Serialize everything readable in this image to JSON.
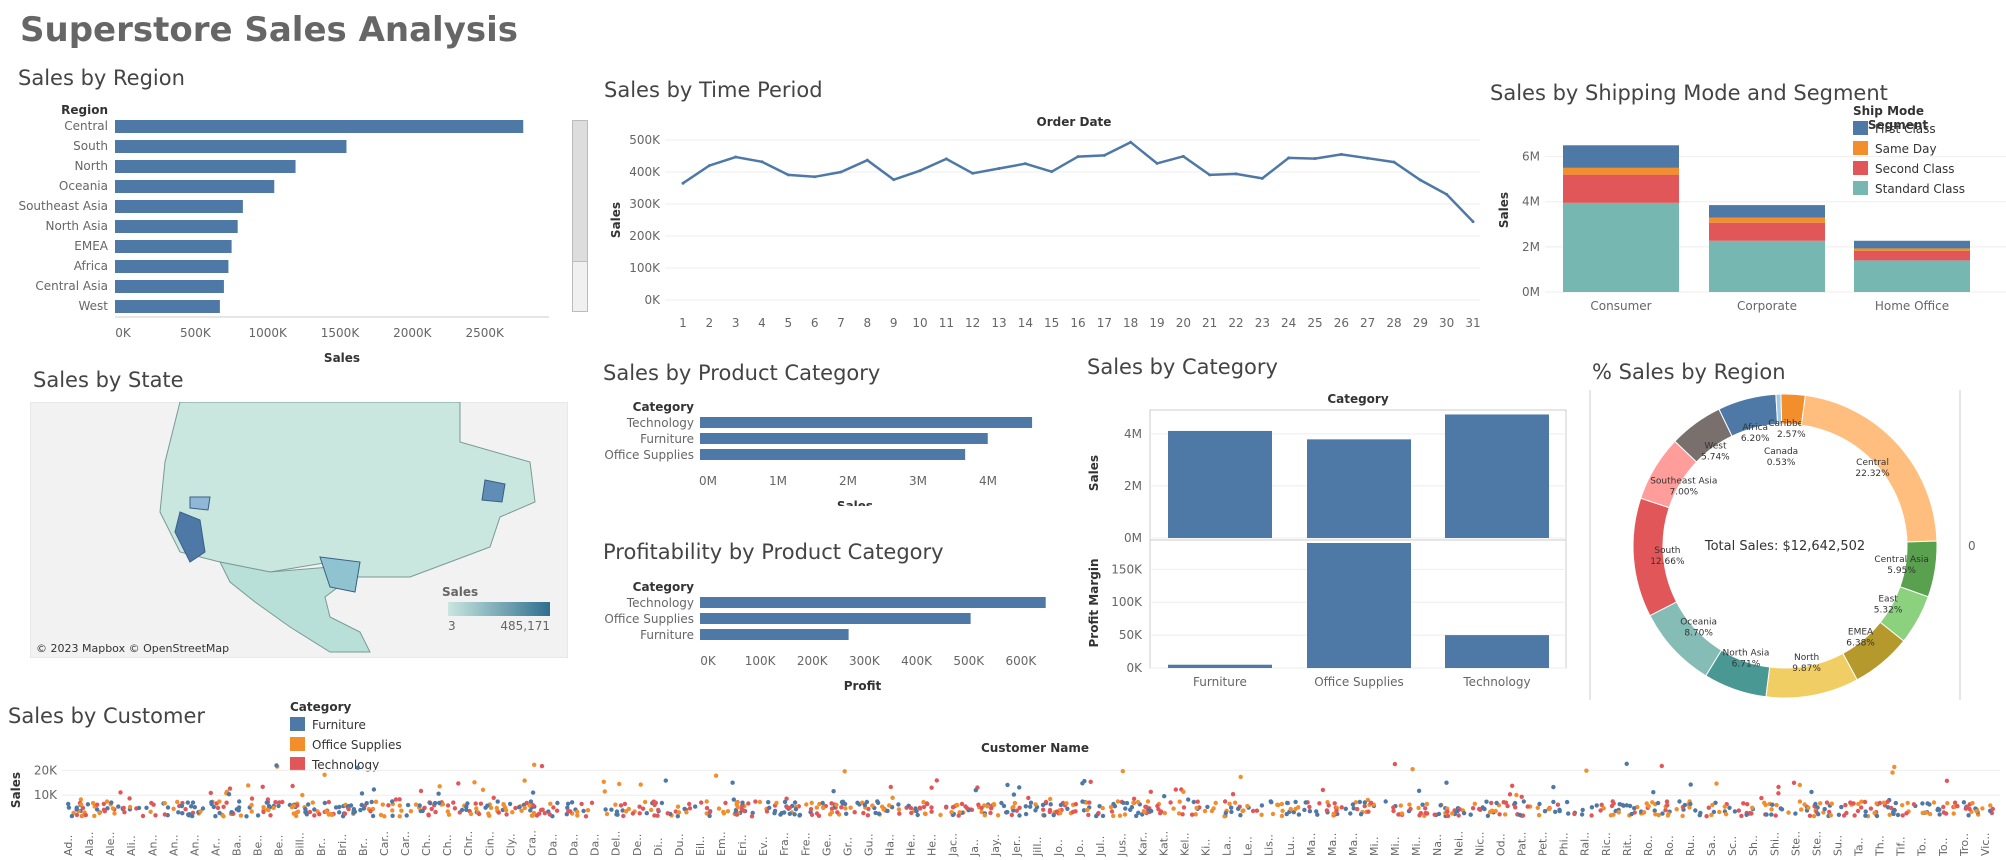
{
  "page_title": "Superstore Sales Analysis",
  "colors": {
    "bar": "#4e79a7",
    "first_class": "#4e79a7",
    "same_day": "#f28e2b",
    "second_class": "#e15759",
    "standard_class": "#76b7b2",
    "furniture": "#4e79a7",
    "office_supplies": "#f28e2b",
    "technology": "#e15759"
  },
  "chart_data": [
    {
      "id": "region",
      "type": "bar",
      "title": "Sales by Region",
      "dimension_label": "Region",
      "xlabel": "Sales",
      "categories": [
        "Central",
        "South",
        "North",
        "Oceania",
        "Southeast Asia",
        "North Asia",
        "EMEA",
        "Africa",
        "Central Asia",
        "West"
      ],
      "values": [
        2822000,
        1600000,
        1248000,
        1101000,
        884000,
        848000,
        806000,
        784000,
        753000,
        725000
      ],
      "xticks": [
        "0K",
        "500K",
        "1000K",
        "1500K",
        "2000K",
        "2500K"
      ],
      "xlim": [
        0,
        3000000
      ]
    },
    {
      "id": "time",
      "type": "line",
      "title": "Sales by Time Period",
      "xlabel": "Order Date",
      "ylabel": "Sales",
      "x": [
        1,
        2,
        3,
        4,
        5,
        6,
        7,
        8,
        9,
        10,
        11,
        12,
        13,
        14,
        15,
        16,
        17,
        18,
        19,
        20,
        21,
        22,
        23,
        24,
        25,
        26,
        27,
        28,
        29,
        30,
        31
      ],
      "values": [
        365000,
        420000,
        447000,
        432000,
        391000,
        385000,
        400000,
        437000,
        376000,
        404000,
        441000,
        396000,
        411000,
        426000,
        401000,
        448000,
        452000,
        493000,
        427000,
        449000,
        391000,
        394000,
        380000,
        444000,
        442000,
        455000,
        443000,
        431000,
        375000,
        330000,
        245000
      ],
      "yticks": [
        "0K",
        "100K",
        "200K",
        "300K",
        "400K",
        "500K"
      ],
      "ylim": [
        0,
        500000
      ]
    },
    {
      "id": "shipping",
      "type": "bar",
      "title": "Sales by Shipping Mode and Segment",
      "xlabel": "Segment",
      "ylabel": "Sales",
      "legend_title": "Ship Mode",
      "categories": [
        "Consumer",
        "Corporate",
        "Home Office"
      ],
      "series": [
        {
          "name": "Standard Class",
          "values": [
            3950000,
            2270000,
            1400000
          ]
        },
        {
          "name": "Second Class",
          "values": [
            1250000,
            800000,
            420000
          ]
        },
        {
          "name": "Same Day",
          "values": [
            300000,
            220000,
            110000
          ]
        },
        {
          "name": "First Class",
          "values": [
            1000000,
            560000,
            340000
          ]
        }
      ],
      "yticks": [
        "0M",
        "2M",
        "4M",
        "6M"
      ],
      "ylim": [
        0,
        7000000
      ]
    },
    {
      "id": "prodcat",
      "type": "bar",
      "title": "Sales by Product Category",
      "dimension_label": "Category",
      "xlabel": "Sales",
      "categories": [
        "Technology",
        "Furniture",
        "Office Supplies"
      ],
      "values": [
        4744000,
        4111000,
        3788000
      ],
      "xticks": [
        "0M",
        "1M",
        "2M",
        "3M",
        "4M"
      ],
      "xlim": [
        0,
        5000000
      ]
    },
    {
      "id": "profit",
      "type": "bar",
      "title": "Profitability by Product Category",
      "dimension_label": "Category",
      "xlabel": "Profit",
      "categories": [
        "Technology",
        "Office Supplies",
        "Furniture"
      ],
      "values": [
        663000,
        519000,
        285000
      ],
      "xticks": [
        "0K",
        "100K",
        "200K",
        "300K",
        "400K",
        "500K",
        "600K"
      ],
      "xlim": [
        0,
        700000
      ]
    },
    {
      "id": "category",
      "type": "bar",
      "title": "Sales by Category",
      "xlabel": "Category",
      "ylabel": "Sales",
      "ylabel2": "Profit Margin",
      "categories": [
        "Furniture",
        "Office Supplies",
        "Technology"
      ],
      "sales": [
        4111000,
        3788000,
        4744000
      ],
      "profit_margin": [
        5000,
        190000,
        50000
      ],
      "yticks": [
        "0M",
        "2M",
        "4M"
      ],
      "yticks2": [
        "0K",
        "50K",
        "100K",
        "150K"
      ],
      "ylim": [
        0,
        4800000
      ],
      "ylim2": [
        0,
        190000
      ]
    },
    {
      "id": "pct",
      "type": "pie",
      "title": "% Sales by Region",
      "center_label": "Total Sales: $12,642,502",
      "axis_zero": "0",
      "slices": [
        {
          "label": "Africa",
          "pct": "6.20%",
          "value": 6.2,
          "color": "#4e79a7"
        },
        {
          "label": "Canada",
          "pct": "0.53%",
          "value": 0.53,
          "color": "#a0cbe8"
        },
        {
          "label": "Caribbean",
          "pct": "2.57%",
          "value": 2.57,
          "color": "#f28e2b"
        },
        {
          "label": "Central",
          "pct": "22.32%",
          "value": 22.32,
          "color": "#ffbe7d"
        },
        {
          "label": "Central Asia",
          "pct": "5.95%",
          "value": 5.95,
          "color": "#59a14f"
        },
        {
          "label": "East",
          "pct": "5.32%",
          "value": 5.32,
          "color": "#8cd17d"
        },
        {
          "label": "EMEA",
          "pct": "6.38%",
          "value": 6.38,
          "color": "#b6992d"
        },
        {
          "label": "North",
          "pct": "9.87%",
          "value": 9.87,
          "color": "#f1ce63"
        },
        {
          "label": "North Asia",
          "pct": "6.71%",
          "value": 6.71,
          "color": "#499894"
        },
        {
          "label": "Oceania",
          "pct": "8.70%",
          "value": 8.7,
          "color": "#86bcb6"
        },
        {
          "label": "South",
          "pct": "12.66%",
          "value": 12.66,
          "color": "#e15759"
        },
        {
          "label": "Southeast Asia",
          "pct": "7.00%",
          "value": 7.0,
          "color": "#ff9d9a"
        },
        {
          "label": "West",
          "pct": "5.74%",
          "value": 5.74,
          "color": "#79706e"
        }
      ]
    },
    {
      "id": "customer",
      "type": "scatter",
      "title": "Sales by Customer",
      "xlabel": "Customer Name",
      "ylabel": "Sales",
      "legend_title": "Category",
      "series": [
        {
          "name": "Furniture"
        },
        {
          "name": "Office Supplies"
        },
        {
          "name": "Technology"
        }
      ],
      "yticks": [
        "10K",
        "20K"
      ],
      "ylim": [
        0,
        25000
      ],
      "x": [
        "Ad..",
        "Ala..",
        "Ale..",
        "Ali..",
        "An..",
        "An..",
        "An..",
        "Ar..",
        "Ba..",
        "Be..",
        "Be..",
        "Bill..",
        "Br..",
        "Bri..",
        "Br..",
        "Car..",
        "Car..",
        "Ch..",
        "Ch..",
        "Chr..",
        "Cin..",
        "Cly..",
        "Cra..",
        "Da..",
        "Da..",
        "Da..",
        "Del..",
        "De..",
        "Di..",
        "Du..",
        "Eil..",
        "Em..",
        "Eri..",
        "Ev..",
        "Fra..",
        "Fre..",
        "Ge..",
        "Gr..",
        "Gu..",
        "Ha..",
        "He..",
        "He..",
        "Jac..",
        "Ja..",
        "Jay..",
        "Jer..",
        "Jill..",
        "Jo..",
        "Jo..",
        "Jul..",
        "Jus..",
        "Kar..",
        "Kat..",
        "Kel..",
        "Ki..",
        "La..",
        "Le..",
        "Lis..",
        "Lu..",
        "Ma..",
        "Ma..",
        "Ma..",
        "Mi..",
        "Mi..",
        "Mi..",
        "Na..",
        "Nei..",
        "Nic..",
        "Od..",
        "Pat..",
        "Pet..",
        "Phi..",
        "Ral..",
        "Ric..",
        "Rit..",
        "Ro..",
        "Ro..",
        "Ru..",
        "Sa..",
        "Sc..",
        "Sh..",
        "Shi..",
        "Ste..",
        "Ste..",
        "Su..",
        "Ta..",
        "Th..",
        "Tif..",
        "To..",
        "To..",
        "Tro..",
        "Vic.."
      ]
    }
  ],
  "map": {
    "title": "Sales by State",
    "legend_title": "Sales",
    "legend_min": "3",
    "legend_max": "485,171",
    "copyright": "© 2023 Mapbox © OpenStreetMap"
  }
}
